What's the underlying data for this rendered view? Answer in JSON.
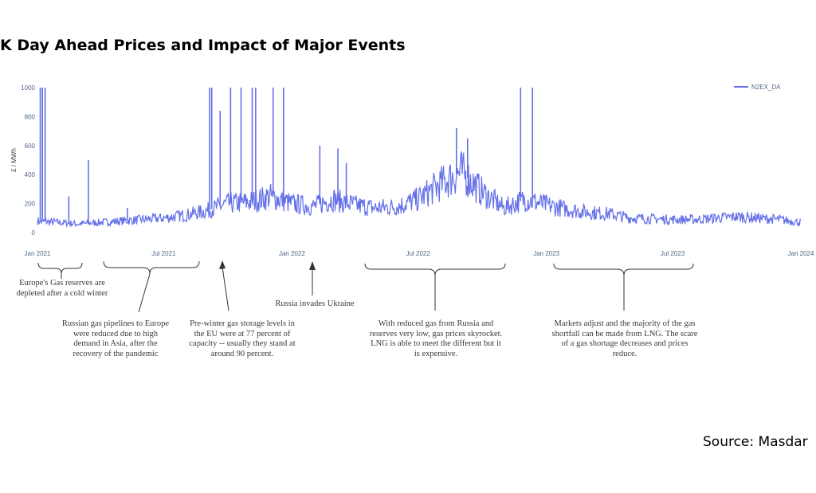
{
  "chart_data": {
    "type": "line",
    "title": "K Day Ahead Prices and Impact of Major Events",
    "ylabel": "£ / MWh",
    "xlabel": "",
    "ylim": [
      0,
      1000
    ],
    "yticks": [
      "0",
      "200",
      "400",
      "600",
      "800",
      "1000"
    ],
    "xticks": [
      "Jan 2021",
      "Jul 2021",
      "Jan 2022",
      "Jul 2022",
      "Jan 2023",
      "Jul 2023",
      "Jan 2024"
    ],
    "legend_position": "top-right",
    "grid": false,
    "colors": {
      "line": "#6470e8",
      "tick_text": "#506784"
    },
    "series": [
      {
        "name": "N2EX_DA",
        "x": [
          "2021-01-01",
          "2021-02-01",
          "2021-03-01",
          "2021-04-01",
          "2021-05-01",
          "2021-06-01",
          "2021-07-01",
          "2021-08-01",
          "2021-09-01",
          "2021-10-01",
          "2021-11-01",
          "2021-12-01",
          "2022-01-01",
          "2022-02-01",
          "2022-03-01",
          "2022-04-01",
          "2022-05-01",
          "2022-06-01",
          "2022-07-01",
          "2022-08-01",
          "2022-09-01",
          "2022-10-01",
          "2022-11-01",
          "2022-12-01",
          "2023-01-01",
          "2023-02-01",
          "2023-03-01",
          "2023-04-01",
          "2023-05-01",
          "2023-06-01",
          "2023-07-01",
          "2023-08-01",
          "2023-09-01",
          "2023-10-01",
          "2023-11-01",
          "2023-12-01",
          "2024-01-01"
        ],
        "y": [
          80,
          70,
          60,
          70,
          80,
          90,
          100,
          120,
          150,
          200,
          210,
          250,
          200,
          180,
          230,
          190,
          170,
          180,
          230,
          330,
          420,
          280,
          170,
          230,
          190,
          160,
          140,
          130,
          100,
          95,
          90,
          90,
          100,
          110,
          100,
          90,
          70
        ]
      }
    ],
    "spikes": [
      {
        "x": "2021-01-05",
        "y": 1000
      },
      {
        "x": "2021-01-08",
        "y": 1000
      },
      {
        "x": "2021-01-12",
        "y": 1000
      },
      {
        "x": "2021-02-15",
        "y": 250
      },
      {
        "x": "2021-03-15",
        "y": 500
      },
      {
        "x": "2021-05-10",
        "y": 170
      },
      {
        "x": "2021-09-05",
        "y": 1000
      },
      {
        "x": "2021-09-08",
        "y": 1000
      },
      {
        "x": "2021-09-20",
        "y": 840
      },
      {
        "x": "2021-10-05",
        "y": 1000
      },
      {
        "x": "2021-10-20",
        "y": 1000
      },
      {
        "x": "2021-11-05",
        "y": 1000
      },
      {
        "x": "2021-11-10",
        "y": 1000
      },
      {
        "x": "2021-12-05",
        "y": 1000
      },
      {
        "x": "2021-12-20",
        "y": 1000
      },
      {
        "x": "2022-02-10",
        "y": 600
      },
      {
        "x": "2022-03-08",
        "y": 580
      },
      {
        "x": "2022-03-20",
        "y": 480
      },
      {
        "x": "2022-08-25",
        "y": 720
      },
      {
        "x": "2022-09-10",
        "y": 650
      },
      {
        "x": "2022-11-25",
        "y": 1000
      },
      {
        "x": "2022-12-12",
        "y": 1000
      }
    ]
  },
  "annotations": [
    {
      "id": "cold-winter",
      "text": "Europe's Gas reserves are depleted after a cold winter"
    },
    {
      "id": "pipelines",
      "text": "Russian gas pipelines to Europe were reduced due to high demand in Asia, after the recovery of the pandemic"
    },
    {
      "id": "storage",
      "text": "Pre-winter gas storage levels in the EU were at 77 percent of capacity -- usually they stand at around 90 percent."
    },
    {
      "id": "ukraine",
      "text": "Russia invades Ukraine"
    },
    {
      "id": "lng",
      "text": "With reduced gas from Russia and reserves very low, gas prices skyrocket. LNG is able to meet the different but it is expensive."
    },
    {
      "id": "markets",
      "text": "Markets adjust and the majority of the gas shortfall can be made from LNG. The scare of a gas shortage decreases and prices reduce."
    }
  ],
  "source": "Source: Masdar"
}
